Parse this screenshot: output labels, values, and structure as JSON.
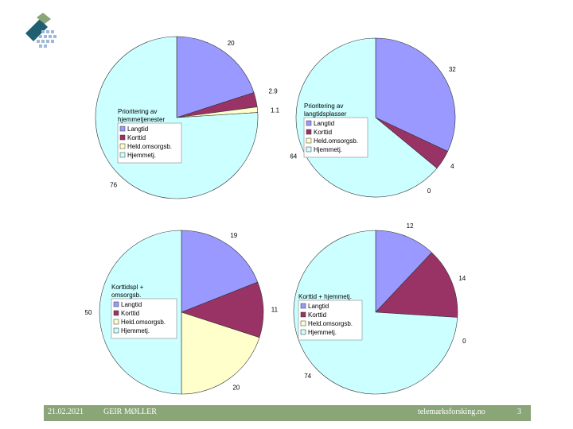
{
  "colors": {
    "langtid": "#9999ff",
    "korttid": "#993366",
    "heldogn": "#ffffcc",
    "hjemmetj": "#ccffff",
    "footer": "#8aa578"
  },
  "logo": {
    "name": "company-logo"
  },
  "chart_data": [
    {
      "type": "pie",
      "legend_title": "Prioritering av hjemmetjenester",
      "legend": [
        "Langtid",
        "Korttid",
        "Held.omsorgsb.",
        "Hjemmetj."
      ],
      "values": [
        20,
        2.9,
        1.1,
        76
      ],
      "labels": [
        "20",
        "2.9",
        "1.1",
        "76"
      ],
      "legend_position": "left"
    },
    {
      "type": "pie",
      "legend_title": "Prioritering av langtidsplasser",
      "legend": [
        "Langtid",
        "Korttid",
        "Held.omsorgsb.",
        "Hjemmetj."
      ],
      "values": [
        32,
        4,
        0,
        64
      ],
      "labels": [
        "32",
        "4",
        "0",
        "64"
      ],
      "legend_position": "left"
    },
    {
      "type": "pie",
      "legend_title": "Korttidspl + omsorgsb.",
      "legend": [
        "Langtid",
        "Korttid",
        "Held.omsorgsb.",
        "Hjemmetj."
      ],
      "values": [
        19,
        11,
        20,
        50
      ],
      "labels": [
        "19",
        "11",
        "20",
        "50"
      ],
      "legend_position": "left"
    },
    {
      "type": "pie",
      "legend_title": "Korttid + hjemmetj.",
      "legend": [
        "Langtid",
        "Korttid",
        "Held.omsorgsb.",
        "Hjemmetj."
      ],
      "values": [
        12,
        14,
        0,
        74
      ],
      "labels": [
        "12",
        "14",
        "0",
        "74"
      ],
      "legend_position": "left"
    }
  ],
  "footer": {
    "date": "21.02.2021",
    "author": "GEIR MØLLER",
    "site": "telemarksforsking.no",
    "page": "3"
  }
}
